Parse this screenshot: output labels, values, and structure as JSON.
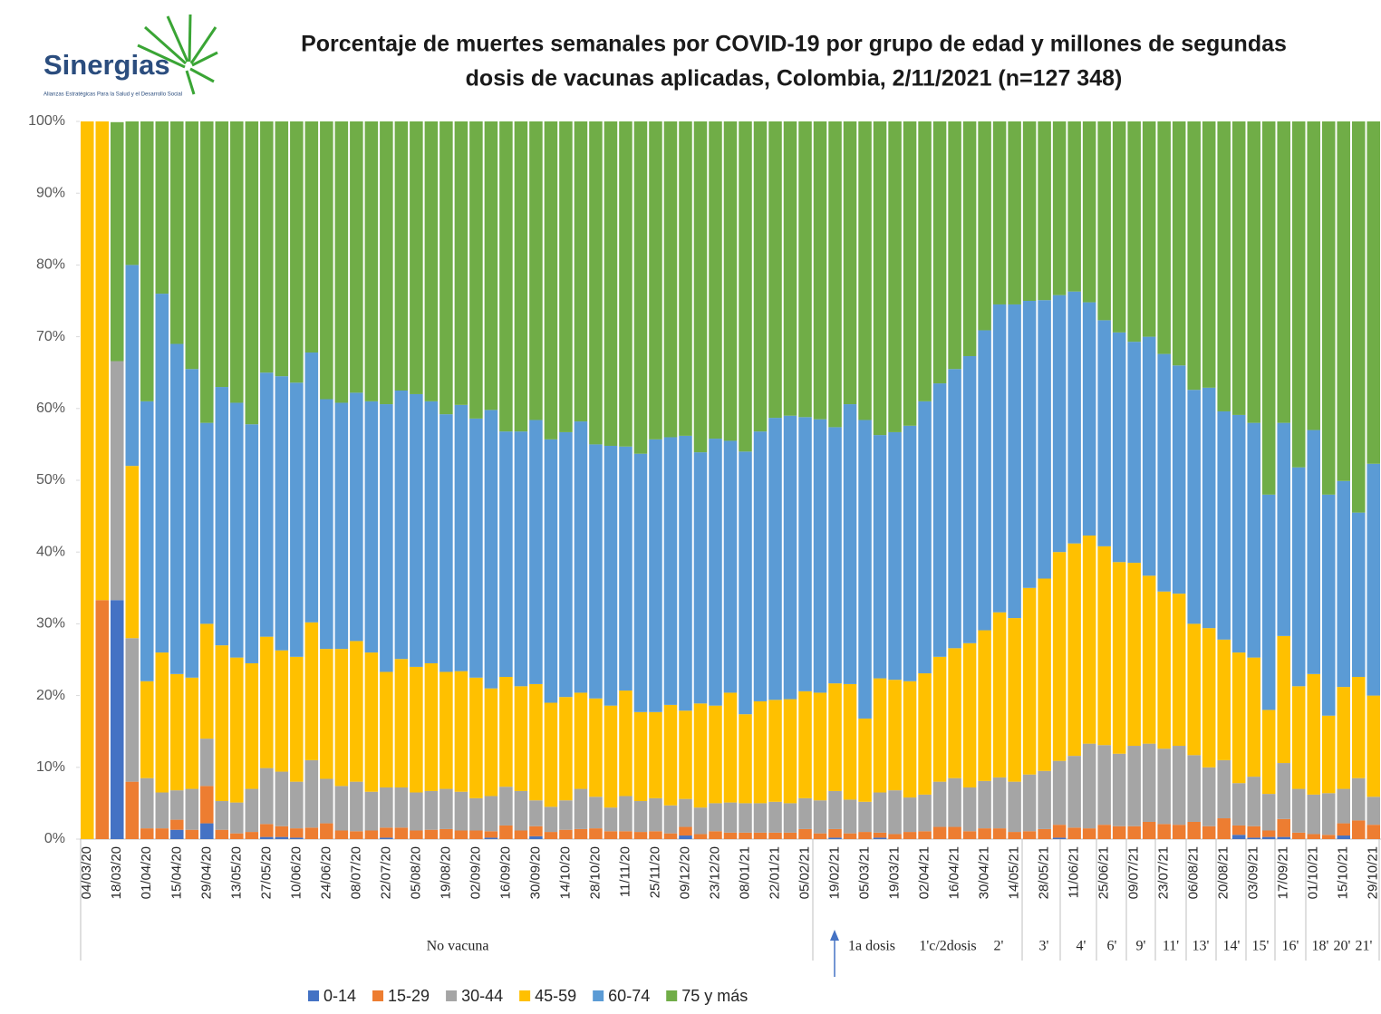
{
  "logo": {
    "name": "Sinergias",
    "tagline": "Alianzas Estratégicas Para la Salud y el Desarrollo Social"
  },
  "chart_data": {
    "type": "stacked_bar",
    "title": [
      "Porcentaje de muertes semanales por COVID-19 por grupo de edad y millones de segundas",
      "dosis de vacunas aplicadas, Colombia, 2/11/2021 (n=127 348)"
    ],
    "categories": [
      "04/03/20",
      null,
      "18/03/20",
      null,
      "01/04/20",
      null,
      "15/04/20",
      null,
      "29/04/20",
      null,
      "13/05/20",
      null,
      "27/05/20",
      null,
      "10/06/20",
      null,
      "24/06/20",
      null,
      "08/07/20",
      null,
      "22/07/20",
      null,
      "05/08/20",
      null,
      "19/08/20",
      null,
      "02/09/20",
      null,
      "16/09/20",
      null,
      "30/09/20",
      null,
      "14/10/20",
      null,
      "28/10/20",
      null,
      "11/11/20",
      null,
      "25/11/20",
      null,
      "09/12/20",
      null,
      "23/12/20",
      null,
      "08/01/21",
      null,
      "22/01/21",
      null,
      "05/02/21",
      null,
      "19/02/21",
      null,
      "05/03/21",
      null,
      "19/03/21",
      null,
      "02/04/21",
      null,
      "16/04/21",
      null,
      "30/04/21",
      null,
      "14/05/21",
      null,
      "28/05/21",
      null,
      "11/06/21",
      null,
      "25/06/21",
      null,
      "09/07/21",
      null,
      "23/07/21",
      null,
      "06/08/21",
      null,
      "20/08/21",
      null,
      "03/09/21",
      null,
      "17/09/21",
      null,
      "01/10/21",
      null,
      "15/10/21",
      null,
      "29/10/21"
    ],
    "groups": [
      "No vacuna",
      "1a dosis",
      "1'c/2dosis",
      "2'",
      "3'",
      "4'",
      "6'",
      "9'",
      "11'",
      "13'",
      "14'",
      "15'",
      "16'",
      "18'",
      "20'",
      "21'"
    ],
    "series": [
      {
        "name": "0-14",
        "color": "#4472c4",
        "values": [
          0,
          0,
          33.3,
          0,
          0,
          0,
          1.3,
          0,
          2.2,
          0,
          0,
          0,
          0.3,
          0.3,
          0.2,
          0,
          0,
          0,
          0,
          0,
          0.2,
          0,
          0,
          0,
          0,
          0,
          0,
          0.2,
          0,
          0,
          0.4,
          0,
          0,
          0,
          0,
          0,
          0,
          0,
          0,
          0,
          0.5,
          0,
          0,
          0,
          0,
          0,
          0,
          0,
          0,
          0,
          0.2,
          0,
          0,
          0.2,
          0,
          0,
          0,
          0,
          0,
          0,
          0,
          0,
          0,
          0,
          0,
          0.2,
          0,
          0,
          0,
          0,
          0,
          0,
          0,
          0,
          0,
          0,
          0,
          0.6,
          0.2,
          0.3,
          0.3,
          0,
          0,
          0,
          0.5,
          0,
          0
        ]
      },
      {
        "name": "15-29",
        "color": "#ed7d31",
        "values": [
          0,
          33.3,
          0,
          8,
          1.5,
          1.5,
          1.4,
          1.3,
          5.2,
          1.3,
          0.8,
          1,
          1.8,
          1.5,
          1.3,
          1.6,
          2.2,
          1.2,
          1.1,
          1.2,
          1.4,
          1.6,
          1.2,
          1.3,
          1.4,
          1.2,
          1.2,
          0.9,
          1.9,
          1.2,
          1.4,
          1,
          1.3,
          1.4,
          1.5,
          1.1,
          1.1,
          1,
          1.1,
          0.8,
          1.2,
          0.7,
          1.1,
          0.9,
          0.9,
          0.9,
          0.9,
          0.9,
          1.4,
          0.8,
          1.2,
          0.8,
          1,
          0.7,
          0.7,
          1,
          1.1,
          1.7,
          1.7,
          1.1,
          1.5,
          1.5,
          1,
          1.1,
          1.4,
          1.8,
          1.6,
          1.5,
          2,
          1.8,
          1.8,
          2.4,
          2.1,
          2,
          2.4,
          1.8,
          2.9,
          1.3,
          1.6,
          0.9,
          2.5,
          0.9,
          0.7,
          0.6,
          1.7,
          2.6,
          2
        ]
      },
      {
        "name": "30-44",
        "color": "#a5a5a5",
        "values": [
          0,
          0,
          33.3,
          20,
          7,
          5,
          4.1,
          5.7,
          6.6,
          4,
          4.3,
          6,
          7.8,
          7.6,
          6.5,
          9.4,
          6.2,
          6.2,
          6.9,
          5.4,
          5.6,
          5.6,
          5.3,
          5.4,
          5.6,
          5.4,
          4.5,
          4.9,
          5.4,
          5.5,
          3.6,
          3.5,
          4.1,
          5.6,
          4.4,
          3.3,
          4.9,
          4.3,
          4.6,
          3.9,
          3.9,
          3.7,
          3.9,
          4.2,
          4.1,
          4.1,
          4.3,
          4.1,
          4.3,
          4.6,
          5.3,
          4.7,
          4.2,
          5.6,
          6.1,
          4.8,
          5.1,
          6.3,
          6.8,
          6.1,
          6.6,
          7.1,
          7,
          7.9,
          8.1,
          8.9,
          10,
          11.8,
          11.1,
          10.1,
          11.2,
          10.9,
          10.5,
          11,
          9.3,
          8.2,
          8.1,
          5.9,
          6.9,
          5.1,
          7.8,
          6.1,
          5.5,
          5.8,
          4.8,
          5.9,
          3.9
        ]
      },
      {
        "name": "45-59",
        "color": "#ffc000",
        "values": [
          100,
          66.7,
          0,
          24,
          13.5,
          19.5,
          16.2,
          15.5,
          16,
          21.7,
          20.2,
          17.5,
          18.3,
          16.9,
          17.4,
          19.2,
          18.1,
          19.1,
          19.6,
          19.4,
          16.1,
          17.9,
          17.5,
          17.8,
          16.3,
          16.8,
          16.8,
          15,
          15.3,
          14.6,
          16.2,
          14.5,
          14.4,
          13.4,
          13.7,
          14.2,
          14.7,
          12.4,
          12,
          14,
          12.3,
          14.5,
          13.6,
          15.3,
          12.4,
          14.2,
          14.2,
          14.5,
          14.9,
          15,
          15,
          16.1,
          11.6,
          15.9,
          15.4,
          16.2,
          16.9,
          17.4,
          18.1,
          20.1,
          21,
          23,
          22.8,
          26,
          26.8,
          29.1,
          29.6,
          29,
          27.7,
          26.7,
          25.5,
          23.4,
          21.9,
          21.2,
          18.3,
          19.4,
          16.8,
          18.2,
          16.6,
          11.7,
          17.7,
          14.3,
          16.8,
          10.8,
          14.2,
          14.1,
          14.1
        ]
      },
      {
        "name": "60-74",
        "color": "#5b9bd5",
        "values": [
          0,
          0,
          0,
          28,
          39,
          50,
          46,
          43,
          28,
          36,
          35.5,
          33.3,
          36.8,
          38.2,
          38.2,
          37.6,
          34.8,
          34.3,
          34.6,
          35,
          37.3,
          37.4,
          38,
          36.5,
          35.9,
          37.1,
          36.1,
          38.8,
          34.2,
          35.5,
          36.8,
          36.7,
          36.9,
          37.8,
          35.4,
          36.2,
          34,
          36,
          38,
          37.3,
          38.3,
          35,
          37.2,
          35.1,
          36.6,
          37.6,
          39.3,
          39.5,
          38.2,
          38.1,
          35.7,
          39,
          41.6,
          33.9,
          34.5,
          35.6,
          37.9,
          38.1,
          38.9,
          40,
          41.8,
          42.9,
          43.7,
          40,
          38.8,
          35.8,
          35.1,
          32.5,
          31.5,
          32,
          30.8,
          33.3,
          33.1,
          31.8,
          32.6,
          33.5,
          31.8,
          33.1,
          32.7,
          30,
          29.7,
          30.5,
          34,
          30.8,
          28.7,
          22.9,
          32.3
        ]
      },
      {
        "name": "75 y más",
        "color": "#70ad47",
        "values": [
          0,
          0,
          33.3,
          20,
          39,
          24,
          31,
          34.5,
          42,
          37,
          39.2,
          42.2,
          35,
          35.5,
          36.4,
          32.2,
          38.7,
          39.2,
          37.8,
          39,
          39.4,
          37.5,
          38,
          39,
          40.8,
          39.5,
          41.4,
          40.2,
          43.2,
          43.2,
          41.6,
          44.3,
          43.3,
          41.8,
          45,
          45.2,
          45.3,
          46.3,
          44.3,
          44,
          43.8,
          46.1,
          44.2,
          44.5,
          46,
          43.2,
          41.3,
          41,
          41.2,
          41.5,
          42.6,
          39.4,
          41.6,
          43.7,
          43.3,
          42.4,
          39,
          36.5,
          34.5,
          32.7,
          29.1,
          25.5,
          25.5,
          25,
          24.9,
          24.2,
          23.7,
          25.2,
          27.7,
          29.4,
          30.7,
          30,
          32.4,
          34,
          37.4,
          37.1,
          40.4,
          40.9,
          42,
          52,
          42,
          48.2,
          43,
          52,
          50.1,
          54.5,
          47.7
        ]
      }
    ],
    "ylim": [
      0,
      100
    ],
    "yticks": [
      {
        "value": 0,
        "label": "0%"
      },
      {
        "value": 10,
        "label": "10%"
      },
      {
        "value": 20,
        "label": "20%"
      },
      {
        "value": 30,
        "label": "30%"
      },
      {
        "value": 40,
        "label": "40%"
      },
      {
        "value": 50,
        "label": "50%"
      },
      {
        "value": 60,
        "label": "60%"
      },
      {
        "value": 70,
        "label": "70%"
      },
      {
        "value": 80,
        "label": "80%"
      },
      {
        "value": 90,
        "label": "90%"
      },
      {
        "value": 100,
        "label": "100%"
      }
    ],
    "grid": false,
    "legend": "bottom"
  }
}
